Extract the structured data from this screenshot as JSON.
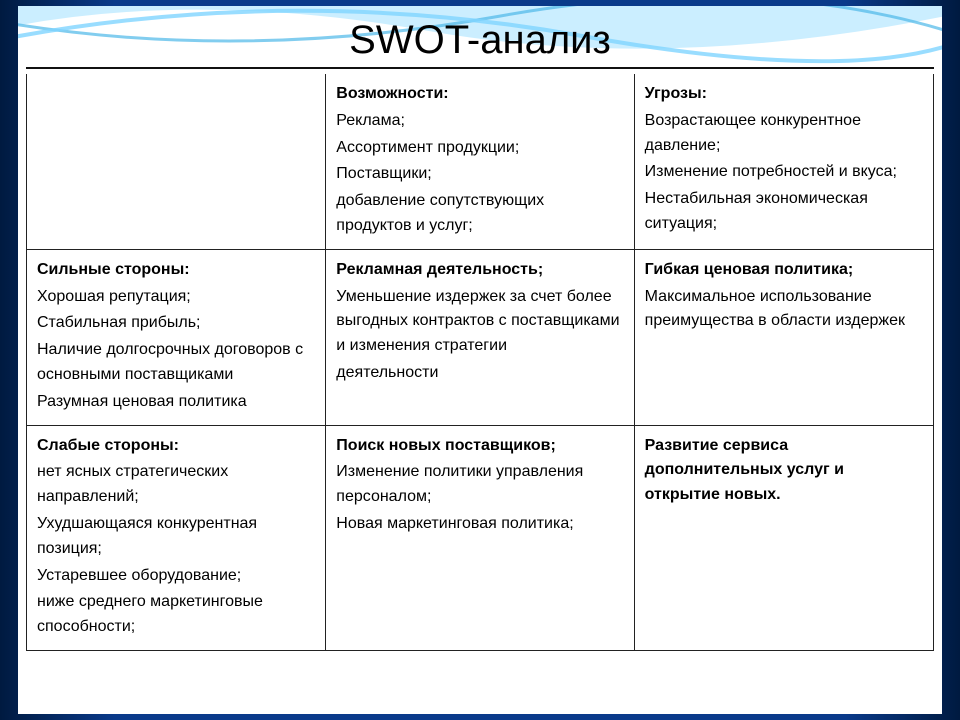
{
  "slide": {
    "title": "SWOT-анализ",
    "background_color": "#ffffff",
    "frame_gradient": [
      "#001a40",
      "#0a3a8a"
    ],
    "wave_colors": [
      "#7fd4ff",
      "#a8e2ff",
      "#4db8e8"
    ],
    "title_fontsize": 40,
    "cell_fontsize": 16,
    "border_color": "#222222"
  },
  "table": {
    "columns_pct": [
      33,
      34,
      33
    ],
    "rows": [
      {
        "c1": {
          "header": "",
          "lines": []
        },
        "c2": {
          "header": "Возможности:",
          "lines": [
            "Реклама;",
            "Ассортимент  продукции;",
            "Поставщики;",
            "добавление сопутствующих продуктов и услуг;"
          ]
        },
        "c3": {
          "header": "Угрозы:",
          "lines": [
            "Возрастающее конкурентное давление;",
            "Изменение потребностей и вкуса;",
            "Нестабильная экономическая ситуация;"
          ]
        }
      },
      {
        "c1": {
          "header": "Сильные стороны:",
          "lines": [
            "Хорошая репутация;",
            "Стабильная прибыль;",
            "Наличие долгосрочных договоров с основными поставщиками",
            "Разумная ценовая политика"
          ]
        },
        "c2": {
          "header": "Рекламная деятельность;",
          "lines": [
            "Уменьшение издержек за счет более выгодных контрактов с поставщиками и изменения стратегии",
            "деятельности"
          ]
        },
        "c3": {
          "header": "Гибкая ценовая политика;",
          "lines": [
            "Максимальное использование преимущества в области издержек"
          ]
        }
      },
      {
        "c1": {
          "header": "Слабые стороны:",
          "lines": [
            "нет ясных стратегических направлений;",
            "Ухудшающаяся конкурентная позиция;",
            "Устаревшее оборудование;",
            "ниже среднего маркетинговые способности;"
          ]
        },
        "c2": {
          "header": "Поиск новых поставщиков;",
          "lines": [
            "Изменение политики управления персоналом;",
            "Новая маркетинговая политика;"
          ]
        },
        "c3": {
          "header": "Развитие сервиса дополнительных услуг и открытие новых.",
          "lines": []
        }
      }
    ]
  }
}
